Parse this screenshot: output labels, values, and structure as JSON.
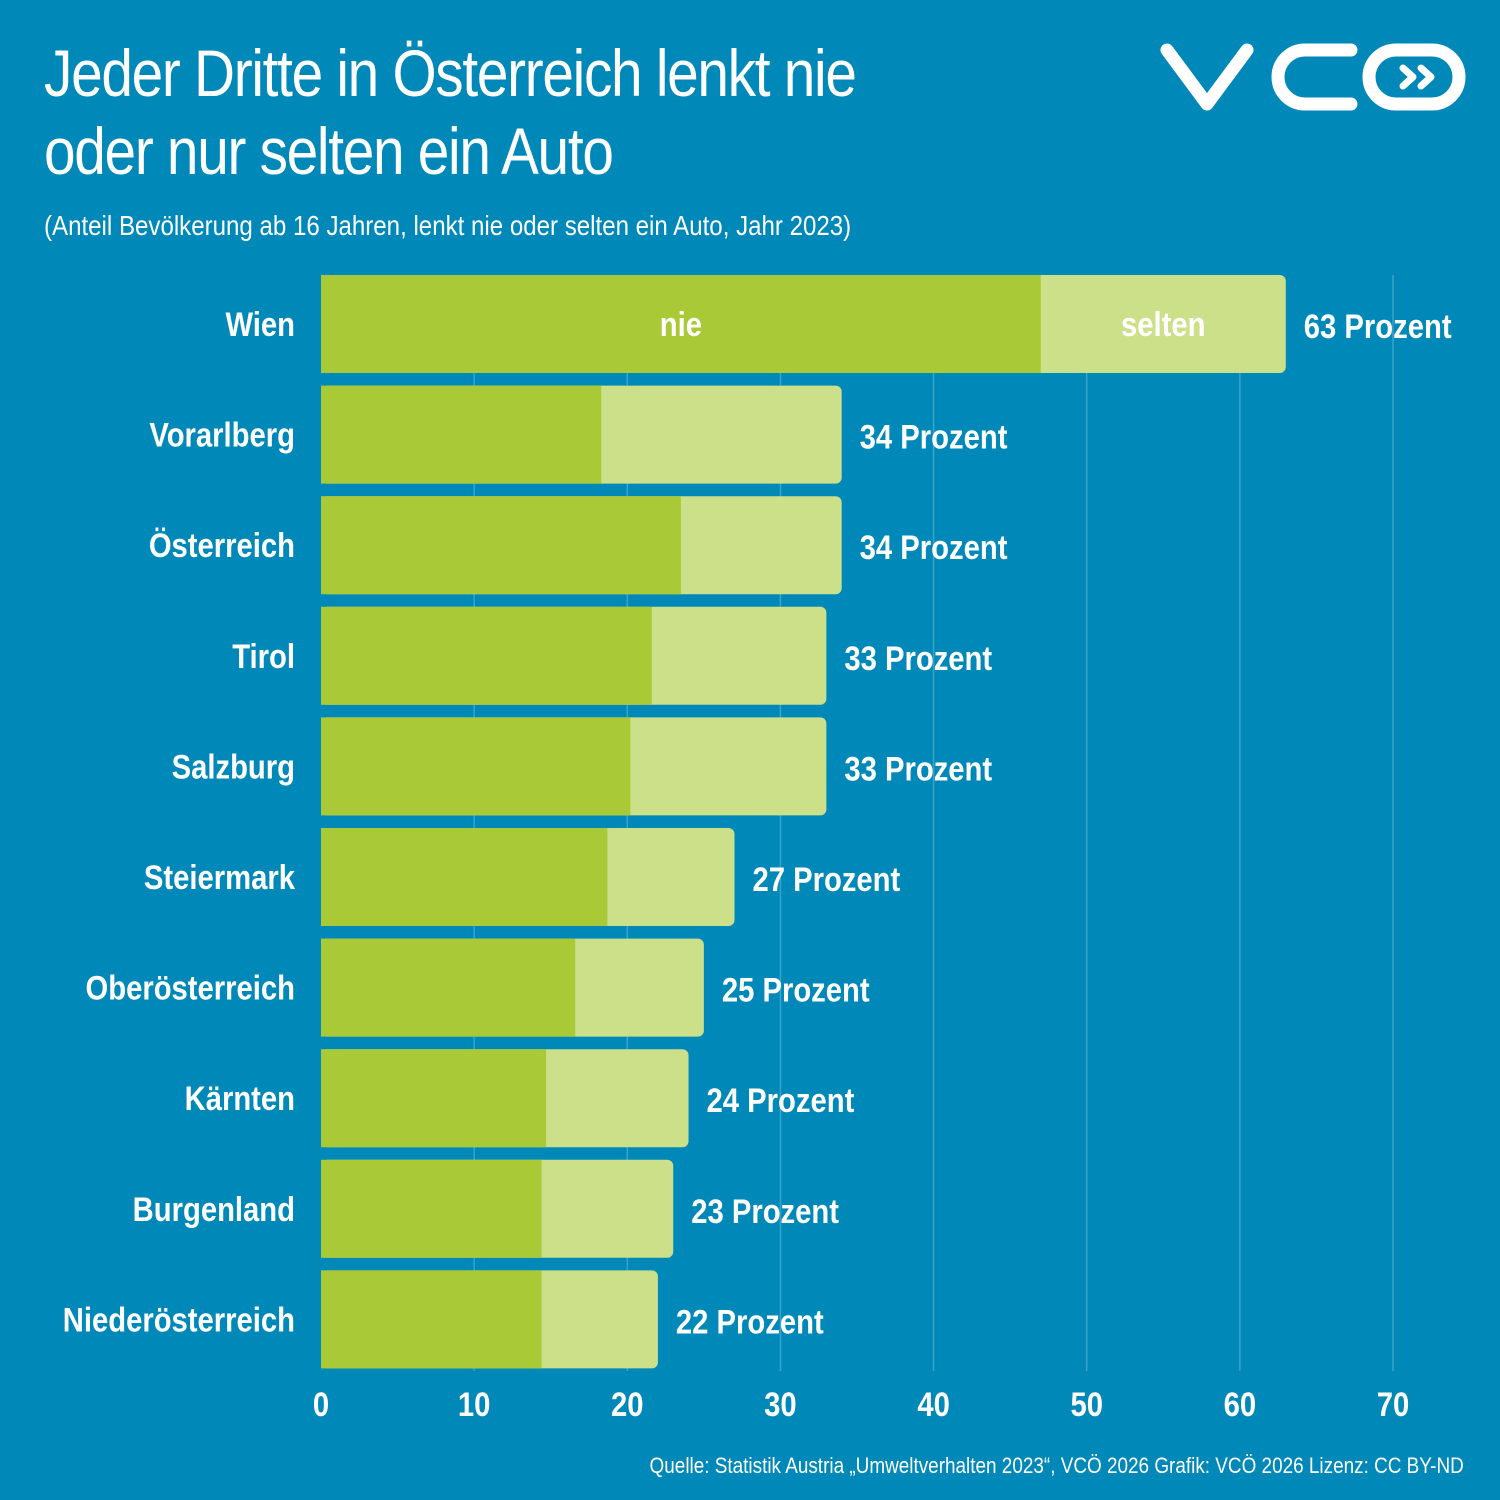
{
  "header": {
    "title_line1": "Jeder Dritte in Österreich lenkt nie",
    "title_line2": "oder nur selten ein Auto",
    "subtitle": "(Anteil Bevölkerung ab 16 Jahren, lenkt nie oder selten ein Auto, Jahr 2023)",
    "logo": "VCÖ logo"
  },
  "colors": {
    "background": "#0089b8",
    "nie": "#aac937",
    "selten": "#cce089",
    "text": "#ffffff",
    "gridline": "#3ba3c9"
  },
  "footer": {
    "source": "Quelle: Statistik Austria „Umweltverhalten 2023“, VCÖ 2026 Grafik: VCÖ 2026 Lizenz: CC BY-ND"
  },
  "chart_data": {
    "type": "bar",
    "orientation": "horizontal",
    "stacked": true,
    "title": "Jeder Dritte in Österreich lenkt nie oder nur selten ein Auto",
    "subtitle": "(Anteil Bevölkerung ab 16 Jahren, lenkt nie oder selten ein Auto, Jahr 2023)",
    "xlabel": "",
    "ylabel": "",
    "xlim": [
      0,
      70
    ],
    "xticks": [
      0,
      10,
      20,
      30,
      40,
      50,
      60,
      70
    ],
    "grid": true,
    "categories": [
      "Wien",
      "Vorarlberg",
      "Österreich",
      "Tirol",
      "Salzburg",
      "Steiermark",
      "Oberösterreich",
      "Kärnten",
      "Burgenland",
      "Niederösterreich"
    ],
    "series": [
      {
        "name": "nie",
        "values": [
          47,
          18.3,
          23.5,
          21.6,
          20.2,
          18.7,
          16.6,
          14.7,
          14.4,
          14.4
        ]
      },
      {
        "name": "selten",
        "values": [
          16,
          15.7,
          10.5,
          11.4,
          12.8,
          8.3,
          8.4,
          9.3,
          8.6,
          7.6
        ]
      }
    ],
    "totals": [
      63,
      34,
      34,
      33,
      33,
      27,
      25,
      24,
      23,
      22
    ],
    "total_labels": [
      "63 Prozent",
      "34 Prozent",
      "34 Prozent",
      "33 Prozent",
      "33 Prozent",
      "27 Prozent",
      "25 Prozent",
      "24 Prozent",
      "23 Prozent",
      "22 Prozent"
    ],
    "segment_labels_on_first_bar": [
      "nie",
      "selten"
    ],
    "legend": "inline in first bar"
  }
}
